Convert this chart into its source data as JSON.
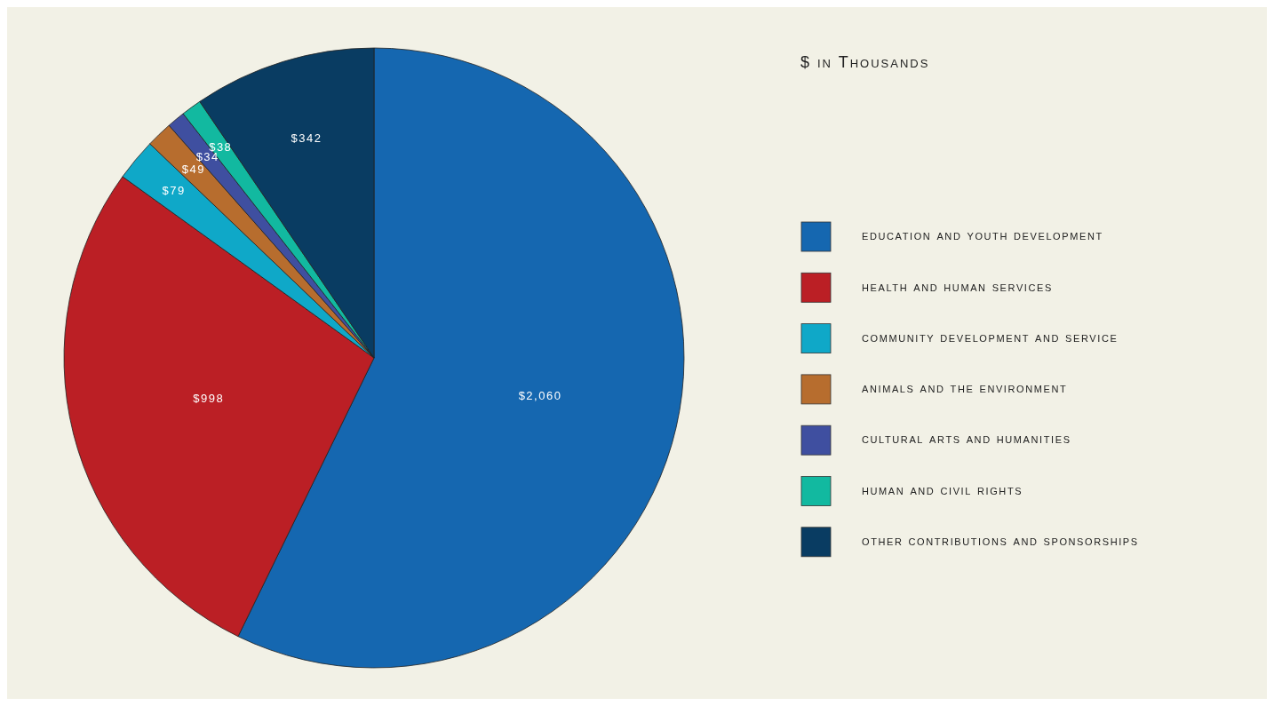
{
  "chart_data": {
    "type": "pie",
    "title": "$ in Thousands",
    "categories": [
      "education and youth development",
      "health and human services",
      "community development and service",
      "animals and the environment",
      "cultural arts and humanities",
      "human and civil rights",
      "other contributions and sponsorships"
    ],
    "values": [
      2060,
      998,
      79,
      49,
      34,
      38,
      342
    ],
    "value_labels": [
      "$2,060",
      "$998",
      "$79",
      "$49",
      "$34",
      "$38",
      "$342"
    ],
    "colors": [
      "#1567b0",
      "#bb1f25",
      "#0fa8c8",
      "#b76d2e",
      "#3f4fa0",
      "#12b9a0",
      "#093c62"
    ],
    "legend": "right"
  }
}
